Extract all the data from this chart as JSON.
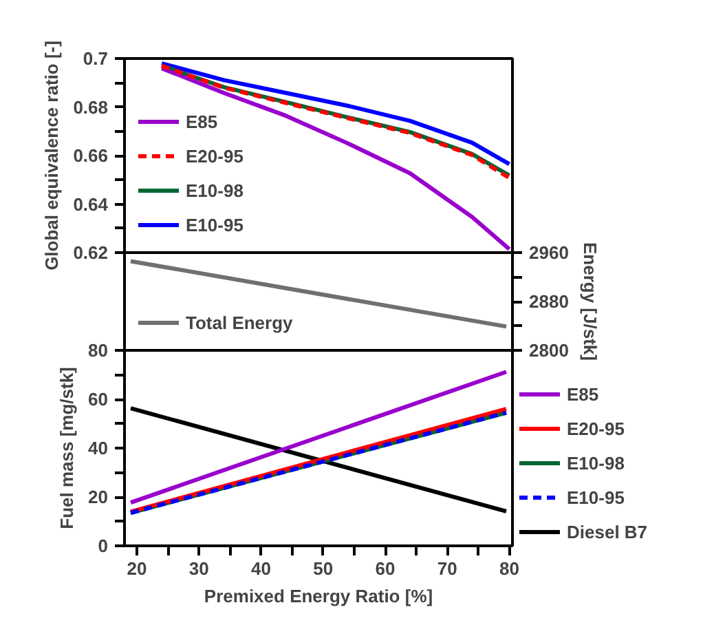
{
  "chart_data": [
    {
      "type": "line",
      "ylabel": "Global equivalence ratio [-]",
      "x": [
        24,
        34,
        44,
        54,
        64,
        74,
        80
      ],
      "xlim": [
        18,
        80.5
      ],
      "ylim": [
        0.62,
        0.7
      ],
      "yticks": [
        0.62,
        {
          "value": 0.63,
          "label": null
        },
        0.64,
        {
          "value": 0.65,
          "label": null
        },
        0.66,
        {
          "value": 0.67,
          "label": null
        },
        0.68,
        {
          "value": 0.69,
          "label": null
        },
        0.7
      ],
      "tick_labels": "y",
      "legend": "bottom left",
      "series": [
        {
          "name": "E85",
          "color": "#9900cc",
          "values": [
            0.696,
            0.6858,
            0.6764,
            0.665,
            0.6527,
            0.6347,
            0.6214
          ]
        },
        {
          "name": "E20-95",
          "color": "#ff0000",
          "line_style": "dashed",
          "values": [
            0.697,
            0.688,
            0.6817,
            0.6754,
            0.6693,
            0.6602,
            0.6508
          ]
        },
        {
          "name": "E10-98",
          "color": "#006633",
          "values": [
            0.697,
            0.6882,
            0.682,
            0.6757,
            0.6697,
            0.6606,
            0.6518
          ]
        },
        {
          "name": "E10-95",
          "color": "#0000ff",
          "values": [
            0.698,
            0.6911,
            0.6858,
            0.6805,
            0.6743,
            0.6653,
            0.6565
          ]
        }
      ]
    },
    {
      "type": "line",
      "y2label": "Energy [J/stk]",
      "x": [
        19,
        79.5
      ],
      "xlim": [
        18,
        80.5
      ],
      "y2lim": [
        2800,
        2960
      ],
      "y2ticks": [
        2800,
        {
          "value": 2840,
          "label": null
        },
        2880,
        {
          "value": 2920,
          "label": null
        },
        2960
      ],
      "legend": "bottom left",
      "series": [
        {
          "name": "Total Energy",
          "color": "#707070",
          "axis": "y2",
          "values": [
            2946,
            2839
          ]
        }
      ]
    },
    {
      "type": "line",
      "xlabel": "Premixed Energy Ratio [%]",
      "ylabel": "Fuel mass [mg/stk]",
      "x": [
        19,
        79.5
      ],
      "xlim": [
        18,
        80.5
      ],
      "ylim": [
        0,
        80
      ],
      "xticks": [
        20,
        {
          "value": 25,
          "label": null
        },
        30,
        {
          "value": 35,
          "label": null
        },
        40,
        {
          "value": 45,
          "label": null
        },
        50,
        {
          "value": 55,
          "label": null
        },
        60,
        {
          "value": 65,
          "label": null
        },
        70,
        {
          "value": 75,
          "label": null
        },
        80
      ],
      "yticks": [
        0,
        {
          "value": 10,
          "label": null
        },
        20,
        {
          "value": 30,
          "label": null
        },
        40,
        {
          "value": 50,
          "label": null
        },
        60,
        {
          "value": 70,
          "label": null
        },
        80
      ],
      "legend": "right",
      "series": [
        {
          "name": "E85",
          "color": "#9900cc",
          "values": [
            17.7,
            71.2
          ]
        },
        {
          "name": "E20-95",
          "color": "#ff0000",
          "values": [
            14,
            56
          ]
        },
        {
          "name": "E10-98",
          "color": "#006633",
          "values": [
            13.5,
            54.5
          ]
        },
        {
          "name": "E10-95",
          "color": "#0000ff",
          "line_style": "dashed",
          "values": [
            13.5,
            54.5
          ]
        },
        {
          "name": "Diesel B7",
          "color": "#000000",
          "values": [
            56.3,
            14.1
          ]
        }
      ]
    }
  ]
}
